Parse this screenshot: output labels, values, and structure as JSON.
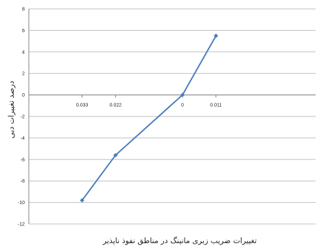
{
  "chart_data": {
    "type": "line",
    "xlabel": "تغییرات ضریب زبری مانینگ در مناطق نفوذ ناپذیر",
    "ylabel": "درصد تغییرات دبی",
    "ylim": [
      -12,
      8
    ],
    "yticks": [
      8,
      6,
      4,
      2,
      0,
      -2,
      -4,
      -6,
      -8,
      -10,
      -12
    ],
    "xticks": [
      "0.033",
      "0.022",
      "0",
      "0.011"
    ],
    "x": [
      -0.033,
      -0.022,
      0,
      0.011
    ],
    "grid": true,
    "series": [
      {
        "values": [
          -9.8,
          -5.6,
          0,
          5.5
        ]
      }
    ],
    "colors": {
      "line": "#4a7ebb",
      "grid": "#bfbfbf",
      "axis": "#808080"
    }
  }
}
